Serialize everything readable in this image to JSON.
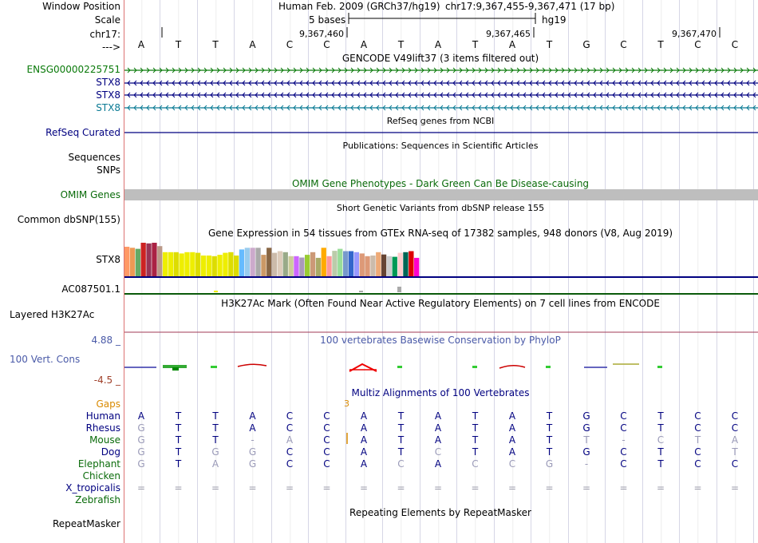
{
  "header": {
    "window_position_label": "Window Position",
    "scale_label": "Scale",
    "chrom_label": "chr17:",
    "arrow_label": "--->",
    "assembly_text": "Human Feb. 2009 (GRCh37/hg19)",
    "position_text": "chr17:9,367,455-9,367,471 (17 bp)",
    "scale_text": "5 bases",
    "db_text": "hg19",
    "ruler_ticks": [
      "9,367,460",
      "9,367,465",
      "9,367,470"
    ]
  },
  "sequence": [
    "A",
    "T",
    "T",
    "A",
    "C",
    "C",
    "A",
    "T",
    "A",
    "T",
    "A",
    "T",
    "G",
    "C",
    "T",
    "C",
    "C"
  ],
  "gencode": {
    "title": "GENCODE V49lift37 (3 items filtered out)",
    "tracks": [
      {
        "label": "ENSG00000225751",
        "color": "#0a7a0a",
        "strand": "+"
      },
      {
        "label": "STX8",
        "color": "#000080",
        "strand": "-"
      },
      {
        "label": "STX8",
        "color": "#000080",
        "strand": "-"
      },
      {
        "label": "STX8",
        "color": "#0a7a94",
        "strand": "-"
      }
    ]
  },
  "refseq": {
    "title": "RefSeq genes from NCBI",
    "label": "RefSeq Curated"
  },
  "publications": {
    "title": "Publications: Sequences in Scientific Articles",
    "label1": "Sequences",
    "label2": "SNPs"
  },
  "omim": {
    "title": "OMIM Gene Phenotypes - Dark Green Can Be Disease-causing",
    "label": "OMIM Genes"
  },
  "dbsnp": {
    "title": "Short Genetic Variants from dbSNP release 155",
    "label": "Common dbSNP(155)"
  },
  "gtex": {
    "title": "Gene Expression in 54 tissues from GTEx RNA-seq of 17382 samples, 948 donors (V8, Aug 2019)",
    "gene_label": "STX8",
    "gene2_label": "AC087501.1",
    "tissue_levels": [
      0.88,
      0.85,
      0.82,
      1.0,
      0.98,
      1.0,
      0.9,
      0.72,
      0.72,
      0.72,
      0.68,
      0.72,
      0.72,
      0.7,
      0.62,
      0.62,
      0.6,
      0.64,
      0.7,
      0.72,
      0.62,
      0.8,
      0.85,
      0.85,
      0.85,
      0.64,
      0.85,
      0.7,
      0.75,
      0.72,
      0.6,
      0.6,
      0.56,
      0.64,
      0.72,
      0.55,
      0.85,
      0.6,
      0.76,
      0.82,
      0.75,
      0.75,
      0.72,
      0.68,
      0.6,
      0.62,
      0.72,
      0.65,
      0.6,
      0.58,
      0.7,
      0.72,
      0.75,
      0.55
    ],
    "tissue_colors": [
      "#ff9966",
      "#ee9955",
      "#66aa66",
      "#cc2222",
      "#993355",
      "#aa2244",
      "#bb9988",
      "#eeee00",
      "#eeee00",
      "#dddd00",
      "#eeee00",
      "#eeee00",
      "#eeee00",
      "#dddd00",
      "#eeee00",
      "#eeee00",
      "#dddd00",
      "#eeee00",
      "#eeee00",
      "#dddd00",
      "#dddd00",
      "#66bbff",
      "#99ccee",
      "#ccaacc",
      "#aaaaaa",
      "#cc9966",
      "#886644",
      "#ccbbaa",
      "#ddccbb",
      "#99aa88",
      "#cccc99",
      "#cc66ff",
      "#aa99bb",
      "#99cc33",
      "#cc9977",
      "#aaaa66",
      "#ffaa00",
      "#ff9999",
      "#bbccaa",
      "#99dd99",
      "#7799cc",
      "#3366cc",
      "#9999ff",
      "#dd9977",
      "#dd9977",
      "#ccbbaa",
      "#eeaa77",
      "#664433",
      "#cccccc",
      "#009955",
      "#ffcccc",
      "#006655",
      "#dd0000",
      "#ff00cc"
    ]
  },
  "h3k27ac": {
    "title": "H3K27Ac Mark (Often Found Near Active Regulatory Elements) on 7 cell lines from ENCODE",
    "label": "Layered H3K27Ac"
  },
  "phylop": {
    "title": "100 vertebrates Basewise Conservation by PhyloP",
    "label": "100 Vert. Cons",
    "max_label": "4.88 _",
    "min_label": "-4.5 _"
  },
  "multiz": {
    "title": "Multiz Alignments of 100 Vertebrates",
    "gaps_label": "Gaps",
    "gap_number": "3",
    "species": [
      {
        "name": "Human",
        "color": "#000080",
        "bases": [
          "A",
          "T",
          "T",
          "A",
          "C",
          "C",
          "A",
          "T",
          "A",
          "T",
          "A",
          "T",
          "G",
          "C",
          "T",
          "C",
          "C"
        ]
      },
      {
        "name": "Rhesus",
        "color": "#000080",
        "bases": [
          "G",
          "T",
          "T",
          "A",
          "C",
          "C",
          "A",
          "T",
          "A",
          "T",
          "A",
          "T",
          "G",
          "C",
          "T",
          "C",
          "C"
        ]
      },
      {
        "name": "Mouse",
        "color": "#0a6b0a",
        "bases": [
          "G",
          "T",
          "T",
          "-",
          "A",
          "C",
          "A",
          "T",
          "A",
          "T",
          "A",
          "T",
          "T",
          "-",
          "C",
          "T",
          "A"
        ]
      },
      {
        "name": "Dog",
        "color": "#000080",
        "bases": [
          "G",
          "T",
          "G",
          "G",
          "C",
          "C",
          "A",
          "T",
          "C",
          "T",
          "A",
          "T",
          "G",
          "C",
          "T",
          "C",
          "T"
        ]
      },
      {
        "name": "Elephant",
        "color": "#0a6b0a",
        "bases": [
          "G",
          "T",
          "A",
          "G",
          "C",
          "C",
          "A",
          "C",
          "A",
          "C",
          "C",
          "G",
          "-",
          "C",
          "T",
          "C",
          "C"
        ]
      },
      {
        "name": "Chicken",
        "color": "#0a6b0a",
        "bases": []
      },
      {
        "name": "X_tropicalis",
        "color": "#000080",
        "bases": [
          "=",
          "=",
          "=",
          "=",
          "=",
          "=",
          "=",
          "=",
          "=",
          "=",
          "=",
          "=",
          "=",
          "=",
          "=",
          "=",
          "="
        ]
      },
      {
        "name": "Zebrafish",
        "color": "#0a6b0a",
        "bases": []
      }
    ]
  },
  "repeatmasker": {
    "title": "Repeating Elements by RepeatMasker",
    "label": "RepeatMasker"
  }
}
